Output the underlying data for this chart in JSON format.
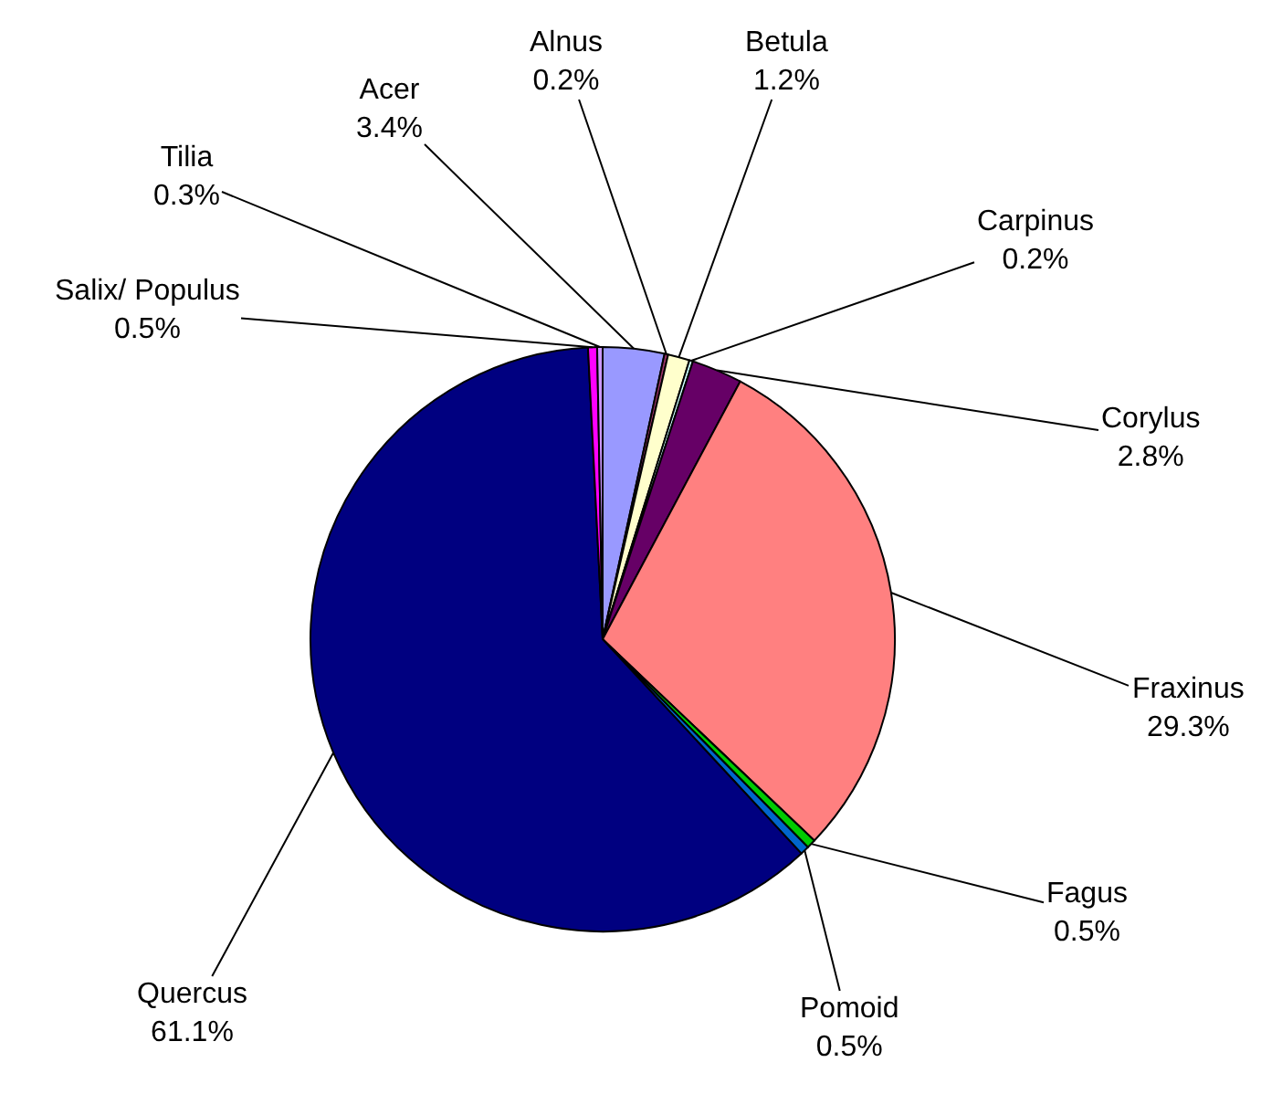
{
  "chart_data": {
    "type": "pie",
    "categories": [
      "Acer",
      "Alnus",
      "Betula",
      "Carpinus",
      "Corylus",
      "Fraxinus",
      "Fagus",
      "Pomoid",
      "Quercus",
      "Salix/ Populus",
      "Tilia"
    ],
    "values": [
      3.4,
      0.2,
      1.2,
      0.2,
      2.8,
      29.3,
      0.5,
      0.5,
      61.1,
      0.5,
      0.3
    ],
    "colors": [
      "#9999ff",
      "#993366",
      "#ffffcc",
      "#ccffff",
      "#660066",
      "#ff8080",
      "#00cc00",
      "#0066cc",
      "#000080",
      "#ff00ff",
      "#cc99ff"
    ],
    "value_labels": [
      "3.4%",
      "0.2%",
      "1.2%",
      "0.2%",
      "2.8%",
      "29.3%",
      "0.5%",
      "0.5%",
      "61.1%",
      "0.5%",
      "0.3%"
    ]
  }
}
